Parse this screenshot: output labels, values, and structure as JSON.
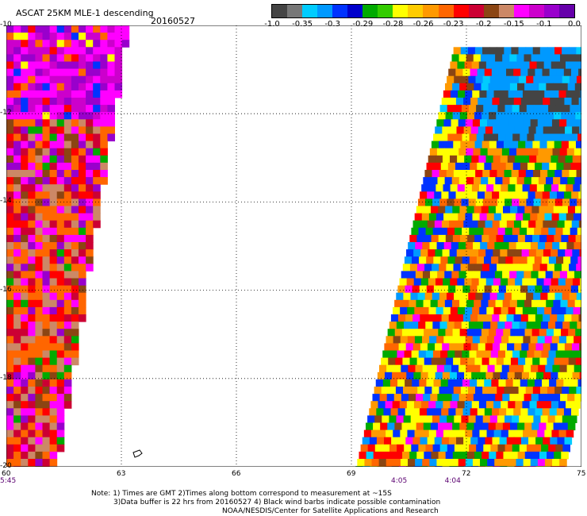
{
  "header": {
    "title": "ASCAT 25KM MLE-1 descending",
    "date": "20160527"
  },
  "legend": {
    "tick_labels": [
      "-1.0",
      "-0.35",
      "-0.3",
      "-0.29",
      "-0.28",
      "-0.26",
      "-0.23",
      "-0.2",
      "-0.15",
      "-0.1",
      "0.0"
    ],
    "colors": [
      "#444444",
      "#777777",
      "#00ccff",
      "#0099ff",
      "#0033ff",
      "#0000cc",
      "#00aa00",
      "#33cc00",
      "#ffff00",
      "#ffcc00",
      "#ff9900",
      "#ff6600",
      "#ff0000",
      "#cc0033",
      "#8b4513",
      "#cc8866",
      "#ff00ff",
      "#cc00cc",
      "#9900cc",
      "#6600aa"
    ]
  },
  "map": {
    "lon_range": [
      60,
      75
    ],
    "lat_range": [
      -20,
      -10
    ],
    "lon_ticks": [
      "60",
      "63",
      "66",
      "69",
      "72",
      "75"
    ],
    "lat_ticks": [
      "-10",
      "-12",
      "-14",
      "-16",
      "-18",
      "-20"
    ],
    "grid": "dotted",
    "time_labels": [
      {
        "text": "5:45",
        "lon": 60.0
      },
      {
        "text": "4:05",
        "lon": 70.2
      },
      {
        "text": "4:04",
        "lon": 71.6
      }
    ]
  },
  "footer": {
    "line1": "Note: 1) Times are GMT 2)Times along bottom correspond to measurement at ~15S",
    "line2": "3)Data buffer is 22 hrs from 20160527 4) Black wind barbs indicate possible contamination",
    "line3": "NOAA/NESDIS/Center for Satellite Applications and Research"
  }
}
